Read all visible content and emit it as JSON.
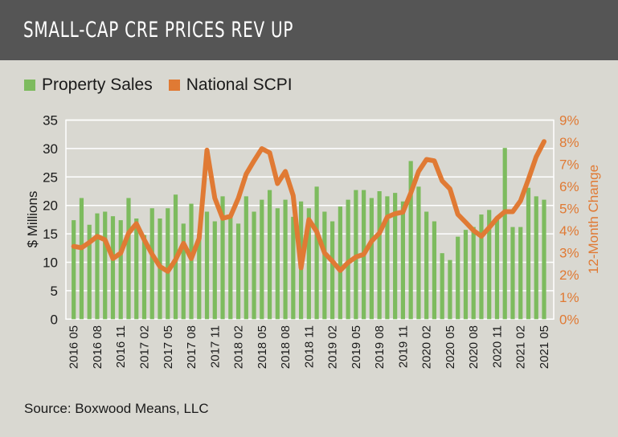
{
  "header": {
    "title": "SMALL-CAP CRE PRICES REV UP"
  },
  "source": "Source: Boxwood Means, LLC",
  "colors": {
    "title_bar": "#555555",
    "background": "#d9d8d1",
    "property_sales": "#7dbb5e",
    "national_scpi": "#e07a34"
  },
  "chart_data": {
    "type": "bar+line",
    "legend_position": "top-left",
    "grid": true,
    "categories": [
      "2016 05",
      "2016 06",
      "2016 07",
      "2016 08",
      "2016 09",
      "2016 10",
      "2016 11",
      "2016 12",
      "2017 01",
      "2017 02",
      "2017 03",
      "2017 04",
      "2017 05",
      "2017 06",
      "2017 07",
      "2017 08",
      "2017 09",
      "2017 10",
      "2017 11",
      "2017 12",
      "2018 01",
      "2018 02",
      "2018 03",
      "2018 04",
      "2018 05",
      "2018 06",
      "2018 07",
      "2018 08",
      "2018 09",
      "2018 10",
      "2018 11",
      "2018 12",
      "2019 01",
      "2019 02",
      "2019 03",
      "2019 04",
      "2019 05",
      "2019 06",
      "2019 07",
      "2019 08",
      "2019 09",
      "2019 10",
      "2019 11",
      "2019 12",
      "2020 01",
      "2020 02",
      "2020 03",
      "2020 04",
      "2020 05",
      "2020 06",
      "2020 07",
      "2020 08",
      "2020 09",
      "2020 10",
      "2020 11",
      "2020 12",
      "2021 01",
      "2021 02",
      "2021 03",
      "2021 04",
      "2021 05"
    ],
    "x_tick_labels": [
      "2016 05",
      "2016 08",
      "2016 11",
      "2017 02",
      "2017 05",
      "2017 08",
      "2017 11",
      "2018 02",
      "2018 05",
      "2018 08",
      "2018 11",
      "2019 02",
      "2019 05",
      "2019 08",
      "2019 11",
      "2020 02",
      "2020 05",
      "2020 08",
      "2020 11",
      "2021 02",
      "2021 05"
    ],
    "y_left": {
      "label": "$ Millions",
      "range": [
        0,
        35
      ],
      "ticks": [
        "0",
        "5",
        "10",
        "15",
        "20",
        "25",
        "30",
        "35"
      ]
    },
    "y_right": {
      "label": "12-Month Change",
      "range": [
        0,
        9
      ],
      "ticks": [
        "0%",
        "1%",
        "2%",
        "3%",
        "4%",
        "5%",
        "6%",
        "7%",
        "8%",
        "9%"
      ]
    },
    "series": [
      {
        "name": "Property Sales",
        "type": "bar",
        "axis": "left",
        "values": [
          17.4,
          21.3,
          16.6,
          18.6,
          18.9,
          18.1,
          17.4,
          21.3,
          17.7,
          14.8,
          19.5,
          17.7,
          19.5,
          21.9,
          16.8,
          20.3,
          15.0,
          18.9,
          17.2,
          21.6,
          18.0,
          16.8,
          21.6,
          18.9,
          21.0,
          22.7,
          19.5,
          21.0,
          18.0,
          20.7,
          19.5,
          23.3,
          18.9,
          17.2,
          19.8,
          21.0,
          22.7,
          22.7,
          21.3,
          22.5,
          21.6,
          22.2,
          20.7,
          27.8,
          23.3,
          18.9,
          17.2,
          11.6,
          10.4,
          14.5,
          15.7,
          16.2,
          18.4,
          19.2,
          17.7,
          30.1,
          16.2,
          16.2,
          23.1,
          21.6,
          21.0
        ]
      },
      {
        "name": "National SCPI",
        "type": "line",
        "axis": "right",
        "values": [
          3.29,
          3.23,
          3.47,
          3.74,
          3.59,
          2.74,
          2.99,
          3.89,
          4.32,
          3.59,
          2.93,
          2.38,
          2.16,
          2.69,
          3.43,
          2.74,
          3.65,
          7.64,
          5.47,
          4.56,
          4.65,
          5.47,
          6.56,
          7.16,
          7.71,
          7.52,
          6.13,
          6.68,
          5.59,
          2.32,
          4.5,
          3.96,
          2.99,
          2.62,
          2.2,
          2.56,
          2.81,
          2.93,
          3.53,
          3.89,
          4.62,
          4.77,
          4.84,
          5.71,
          6.68,
          7.22,
          7.16,
          6.25,
          5.89,
          4.74,
          4.38,
          4.01,
          3.75,
          4.14,
          4.56,
          4.86,
          4.86,
          5.35,
          6.32,
          7.34,
          8.03
        ]
      }
    ]
  }
}
